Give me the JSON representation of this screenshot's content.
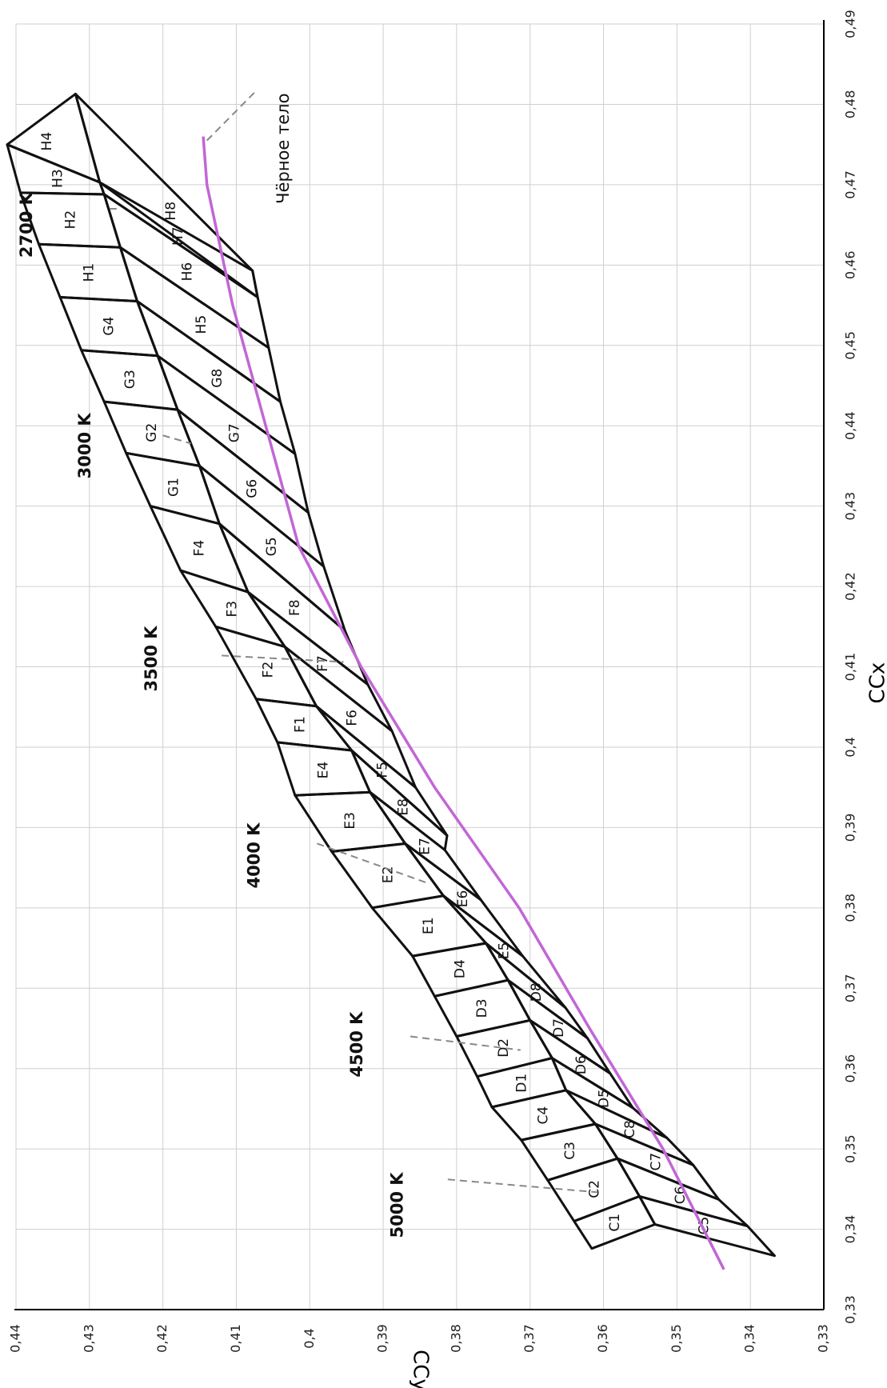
{
  "chart_data": {
    "type": "scatter",
    "xlabel": "CCx",
    "ylabel": "CCy",
    "xlim": [
      0.33,
      0.49
    ],
    "ylim": [
      0.33,
      0.44
    ],
    "grid": true,
    "orientation": "rotated-90-clockwise",
    "x_ticks": [
      "0,33",
      "0,34",
      "0,35",
      "0,36",
      "0,37",
      "0,38",
      "0,39",
      "0,4",
      "0,41",
      "0,42",
      "0,43",
      "0,44",
      "0,45",
      "0,46",
      "0,47",
      "0,48",
      "0,49"
    ],
    "y_ticks": [
      "0,33",
      "0,34",
      "0,35",
      "0,36",
      "0,37",
      "0,38",
      "0,39",
      "0,4",
      "0,41",
      "0,42",
      "0,43",
      "0,44"
    ],
    "locus": {
      "name": "Чёрное тело",
      "points": [
        [
          0.335,
          0.3436
        ],
        [
          0.35,
          0.3519
        ],
        [
          0.365,
          0.3619
        ],
        [
          0.38,
          0.3715
        ],
        [
          0.395,
          0.383
        ],
        [
          0.41,
          0.393
        ],
        [
          0.425,
          0.4015
        ],
        [
          0.44,
          0.406
        ],
        [
          0.455,
          0.4105
        ],
        [
          0.47,
          0.414
        ],
        [
          0.476,
          0.4145
        ]
      ]
    },
    "cct_labels": [
      {
        "text": "2700 K",
        "x": 0.467,
        "y": 0.4263
      },
      {
        "text": "3000 K",
        "x": 0.4378,
        "y": 0.4162
      },
      {
        "text": "3500 K",
        "x": 0.4106,
        "y": 0.3954
      },
      {
        "text": "4000 K",
        "x": 0.383,
        "y": 0.3837
      },
      {
        "text": "4500 K",
        "x": 0.3623,
        "y": 0.3713
      },
      {
        "text": "5000 K",
        "x": 0.3446,
        "y": 0.3608
      }
    ],
    "bins": [
      {
        "label": "C1",
        "points": [
          [
            0.3376,
            0.3616
          ],
          [
            0.341,
            0.364
          ],
          [
            0.3441,
            0.3551
          ],
          [
            0.3406,
            0.353
          ]
        ]
      },
      {
        "label": "C2",
        "points": [
          [
            0.341,
            0.364
          ],
          [
            0.3461,
            0.3676
          ],
          [
            0.3488,
            0.3581
          ],
          [
            0.3441,
            0.3551
          ]
        ]
      },
      {
        "label": "C3",
        "points": [
          [
            0.3461,
            0.3676
          ],
          [
            0.3511,
            0.3712
          ],
          [
            0.3531,
            0.3611
          ],
          [
            0.3488,
            0.3581
          ]
        ]
      },
      {
        "label": "C4",
        "points": [
          [
            0.3511,
            0.3712
          ],
          [
            0.3552,
            0.3752
          ],
          [
            0.3573,
            0.3651
          ],
          [
            0.3531,
            0.3611
          ]
        ]
      },
      {
        "label": "C5",
        "points": [
          [
            0.3406,
            0.353
          ],
          [
            0.3441,
            0.3551
          ],
          [
            0.3404,
            0.3404
          ],
          [
            0.3367,
            0.3367
          ]
        ]
      },
      {
        "label": "C6",
        "points": [
          [
            0.3441,
            0.3551
          ],
          [
            0.3488,
            0.3581
          ],
          [
            0.3437,
            0.3443
          ],
          [
            0.3404,
            0.3404
          ]
        ]
      },
      {
        "label": "C7",
        "points": [
          [
            0.3488,
            0.3581
          ],
          [
            0.3531,
            0.3611
          ],
          [
            0.348,
            0.3478
          ],
          [
            0.3437,
            0.3443
          ]
        ]
      },
      {
        "label": "C8",
        "points": [
          [
            0.3531,
            0.3611
          ],
          [
            0.3573,
            0.3651
          ],
          [
            0.3514,
            0.3514
          ],
          [
            0.348,
            0.3478
          ]
        ]
      },
      {
        "label": "D1",
        "points": [
          [
            0.3552,
            0.3752
          ],
          [
            0.359,
            0.3772
          ],
          [
            0.3613,
            0.367
          ],
          [
            0.3573,
            0.3651
          ]
        ]
      },
      {
        "label": "D2",
        "points": [
          [
            0.359,
            0.3772
          ],
          [
            0.364,
            0.38
          ],
          [
            0.366,
            0.37
          ],
          [
            0.3613,
            0.367
          ]
        ]
      },
      {
        "label": "D3",
        "points": [
          [
            0.364,
            0.38
          ],
          [
            0.369,
            0.383
          ],
          [
            0.371,
            0.373
          ],
          [
            0.366,
            0.37
          ]
        ]
      },
      {
        "label": "D4",
        "points": [
          [
            0.369,
            0.383
          ],
          [
            0.374,
            0.386
          ],
          [
            0.3756,
            0.376
          ],
          [
            0.371,
            0.373
          ]
        ]
      },
      {
        "label": "D5",
        "points": [
          [
            0.3573,
            0.3651
          ],
          [
            0.3613,
            0.367
          ],
          [
            0.3551,
            0.356
          ],
          [
            0.3514,
            0.3514
          ]
        ]
      },
      {
        "label": "D6",
        "points": [
          [
            0.3613,
            0.367
          ],
          [
            0.366,
            0.37
          ],
          [
            0.3594,
            0.3591
          ],
          [
            0.3551,
            0.356
          ]
        ]
      },
      {
        "label": "D7",
        "points": [
          [
            0.366,
            0.37
          ],
          [
            0.371,
            0.373
          ],
          [
            0.3638,
            0.3622
          ],
          [
            0.3594,
            0.3591
          ]
        ]
      },
      {
        "label": "D8",
        "points": [
          [
            0.371,
            0.373
          ],
          [
            0.3756,
            0.376
          ],
          [
            0.3676,
            0.3652
          ],
          [
            0.3638,
            0.3622
          ]
        ]
      },
      {
        "label": "E1",
        "points": [
          [
            0.374,
            0.386
          ],
          [
            0.38,
            0.3915
          ],
          [
            0.3815,
            0.3818
          ],
          [
            0.3756,
            0.376
          ]
        ]
      },
      {
        "label": "E2",
        "points": [
          [
            0.38,
            0.3915
          ],
          [
            0.387,
            0.397
          ],
          [
            0.388,
            0.387
          ],
          [
            0.3815,
            0.3818
          ]
        ]
      },
      {
        "label": "E3",
        "points": [
          [
            0.387,
            0.397
          ],
          [
            0.394,
            0.402
          ],
          [
            0.3944,
            0.3918
          ],
          [
            0.388,
            0.387
          ]
        ]
      },
      {
        "label": "E4",
        "points": [
          [
            0.394,
            0.402
          ],
          [
            0.4006,
            0.4044
          ],
          [
            0.3996,
            0.3943
          ],
          [
            0.3944,
            0.3918
          ]
        ]
      },
      {
        "label": "E5",
        "points": [
          [
            0.3756,
            0.376
          ],
          [
            0.3815,
            0.3818
          ],
          [
            0.374,
            0.371
          ],
          [
            0.3676,
            0.3652
          ]
        ]
      },
      {
        "label": "E6",
        "points": [
          [
            0.3815,
            0.3818
          ],
          [
            0.388,
            0.387
          ],
          [
            0.381,
            0.3767
          ],
          [
            0.374,
            0.371
          ]
        ]
      },
      {
        "label": "E7",
        "points": [
          [
            0.388,
            0.387
          ],
          [
            0.3944,
            0.3918
          ],
          [
            0.3872,
            0.3816
          ],
          [
            0.381,
            0.3767
          ]
        ]
      },
      {
        "label": "E8",
        "points": [
          [
            0.3944,
            0.3918
          ],
          [
            0.3996,
            0.3943
          ],
          [
            0.389,
            0.3813
          ],
          [
            0.3872,
            0.3816
          ]
        ]
      },
      {
        "label": "F1",
        "points": [
          [
            0.4006,
            0.4044
          ],
          [
            0.406,
            0.4073
          ],
          [
            0.4051,
            0.3991
          ],
          [
            0.3996,
            0.3943
          ]
        ]
      },
      {
        "label": "F2",
        "points": [
          [
            0.406,
            0.4073
          ],
          [
            0.415,
            0.4128
          ],
          [
            0.4125,
            0.4034
          ],
          [
            0.4051,
            0.3991
          ]
        ]
      },
      {
        "label": "F3",
        "points": [
          [
            0.415,
            0.4128
          ],
          [
            0.422,
            0.4176
          ],
          [
            0.4193,
            0.4084
          ],
          [
            0.4125,
            0.4034
          ]
        ]
      },
      {
        "label": "F4",
        "points": [
          [
            0.422,
            0.4176
          ],
          [
            0.43,
            0.4217
          ],
          [
            0.4278,
            0.4123
          ],
          [
            0.4193,
            0.4084
          ]
        ]
      },
      {
        "label": "F5",
        "points": [
          [
            0.3996,
            0.3943
          ],
          [
            0.4051,
            0.3991
          ],
          [
            0.395,
            0.3856
          ],
          [
            0.389,
            0.3813
          ]
        ]
      },
      {
        "label": "F6",
        "points": [
          [
            0.4051,
            0.3991
          ],
          [
            0.4125,
            0.4034
          ],
          [
            0.402,
            0.3888
          ],
          [
            0.395,
            0.3856
          ]
        ]
      },
      {
        "label": "F7",
        "points": [
          [
            0.4125,
            0.4034
          ],
          [
            0.4193,
            0.4084
          ],
          [
            0.4078,
            0.3921
          ],
          [
            0.402,
            0.3888
          ]
        ]
      },
      {
        "label": "F8",
        "points": [
          [
            0.4193,
            0.4084
          ],
          [
            0.4278,
            0.4123
          ],
          [
            0.4145,
            0.3952
          ],
          [
            0.4078,
            0.3921
          ]
        ]
      },
      {
        "label": "G1",
        "points": [
          [
            0.43,
            0.4217
          ],
          [
            0.4366,
            0.425
          ],
          [
            0.435,
            0.415
          ],
          [
            0.4278,
            0.4123
          ]
        ]
      },
      {
        "label": "G2",
        "points": [
          [
            0.4366,
            0.425
          ],
          [
            0.443,
            0.428
          ],
          [
            0.442,
            0.418
          ],
          [
            0.435,
            0.415
          ]
        ]
      },
      {
        "label": "G3",
        "points": [
          [
            0.443,
            0.428
          ],
          [
            0.4494,
            0.4311
          ],
          [
            0.4487,
            0.4207
          ],
          [
            0.442,
            0.418
          ]
        ]
      },
      {
        "label": "G4",
        "points": [
          [
            0.4494,
            0.4311
          ],
          [
            0.456,
            0.434
          ],
          [
            0.4555,
            0.4235
          ],
          [
            0.4487,
            0.4207
          ]
        ]
      },
      {
        "label": "G5",
        "points": [
          [
            0.4278,
            0.4123
          ],
          [
            0.435,
            0.415
          ],
          [
            0.4225,
            0.3981
          ],
          [
            0.4145,
            0.3952
          ]
        ]
      },
      {
        "label": "G6",
        "points": [
          [
            0.435,
            0.415
          ],
          [
            0.442,
            0.418
          ],
          [
            0.4292,
            0.4002
          ],
          [
            0.4225,
            0.3981
          ]
        ]
      },
      {
        "label": "G7",
        "points": [
          [
            0.442,
            0.418
          ],
          [
            0.4487,
            0.4207
          ],
          [
            0.4365,
            0.402
          ],
          [
            0.4292,
            0.4002
          ]
        ]
      },
      {
        "label": "G8",
        "points": [
          [
            0.4487,
            0.4207
          ],
          [
            0.4555,
            0.4235
          ],
          [
            0.443,
            0.404
          ],
          [
            0.4365,
            0.402
          ]
        ]
      },
      {
        "label": "H1",
        "points": [
          [
            0.456,
            0.434
          ],
          [
            0.4626,
            0.4369
          ],
          [
            0.4622,
            0.4258
          ],
          [
            0.4555,
            0.4235
          ]
        ]
      },
      {
        "label": "H2",
        "points": [
          [
            0.4626,
            0.4369
          ],
          [
            0.469,
            0.4394
          ],
          [
            0.4688,
            0.428
          ],
          [
            0.4622,
            0.4258
          ]
        ]
      },
      {
        "label": "H3",
        "points": [
          [
            0.469,
            0.4394
          ],
          [
            0.475,
            0.4412
          ],
          [
            0.4703,
            0.4286
          ],
          [
            0.4688,
            0.428
          ]
        ]
      },
      {
        "label": "H4",
        "points": [
          [
            0.475,
            0.4412
          ],
          [
            0.4813,
            0.4319
          ],
          [
            0.4703,
            0.4286
          ],
          [
            0.475,
            0.4412
          ]
        ]
      },
      {
        "label": "H5",
        "points": [
          [
            0.4555,
            0.4235
          ],
          [
            0.4622,
            0.4258
          ],
          [
            0.4497,
            0.4056
          ],
          [
            0.443,
            0.404
          ]
        ]
      },
      {
        "label": "H6",
        "points": [
          [
            0.4622,
            0.4258
          ],
          [
            0.4688,
            0.428
          ],
          [
            0.456,
            0.4071
          ],
          [
            0.4497,
            0.4056
          ]
        ]
      },
      {
        "label": "H7",
        "points": [
          [
            0.4688,
            0.428
          ],
          [
            0.4703,
            0.4286
          ],
          [
            0.4593,
            0.4078
          ],
          [
            0.456,
            0.4071
          ]
        ]
      },
      {
        "label": "H8",
        "points": [
          [
            0.4703,
            0.4286
          ],
          [
            0.4813,
            0.4319
          ],
          [
            0.4593,
            0.4078
          ],
          [
            0.456,
            0.4071
          ]
        ]
      }
    ]
  }
}
